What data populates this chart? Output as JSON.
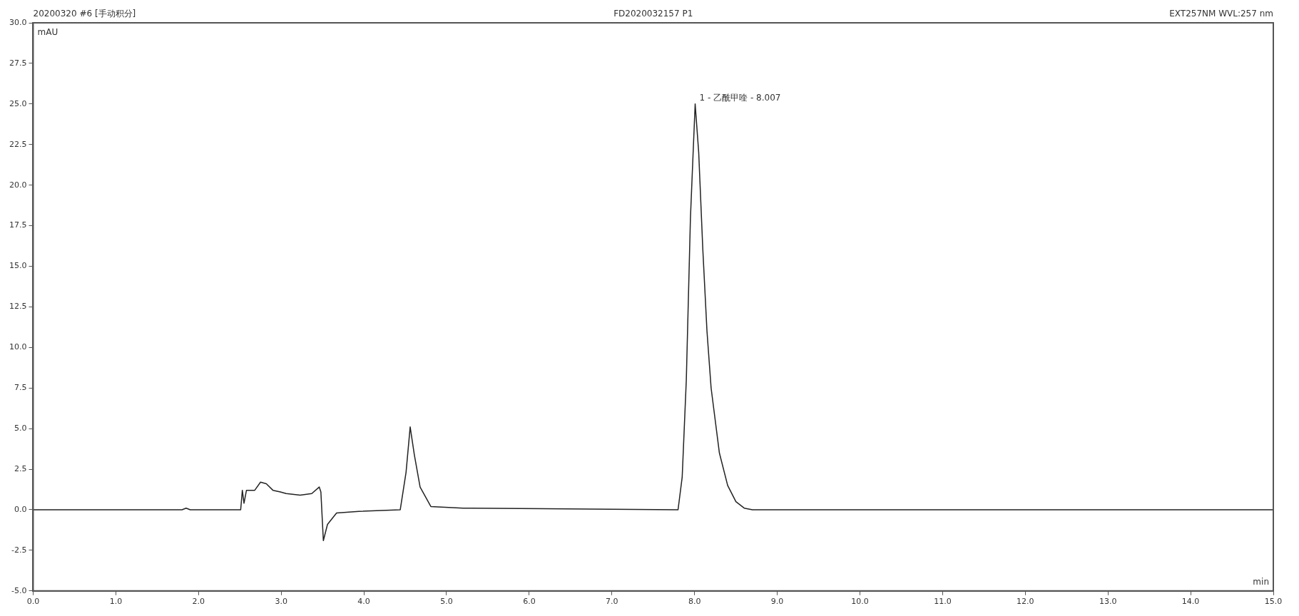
{
  "chart_data": {
    "type": "line",
    "title": "20200320 #6 [手动积分]",
    "subtitle": "FD2020032157 P1",
    "xlabel": "min",
    "ylabel": "mAU",
    "annotations": [
      "EXT257NM WVL:257 nm",
      {
        "text": "1 - 乙酰甲喹 - 8.007",
        "x": 8.007,
        "y": 25.0
      }
    ],
    "x": [
      0,
      1.8,
      1.85,
      1.9,
      2.51,
      2.53,
      2.55,
      2.58,
      2.68,
      2.75,
      2.82,
      2.9,
      2.99,
      3.06,
      3.23,
      3.37,
      3.46,
      3.48,
      3.51,
      3.56,
      3.67,
      3.94,
      4.44,
      4.51,
      4.56,
      4.61,
      4.68,
      4.81,
      5.2,
      5.24,
      5.3,
      7.8,
      7.85,
      7.9,
      7.95,
      8.007,
      8.05,
      8.1,
      8.15,
      8.2,
      8.3,
      8.4,
      8.5,
      8.6,
      8.7,
      15
    ],
    "values": [
      0,
      0,
      0.1,
      0,
      0,
      1.2,
      0.4,
      1.2,
      1.2,
      1.7,
      1.6,
      1.2,
      1.1,
      1.0,
      0.9,
      1.0,
      1.4,
      1.1,
      -1.9,
      -0.9,
      -0.2,
      -0.1,
      0,
      2.3,
      5.1,
      3.4,
      1.4,
      0.2,
      0.1,
      0.1,
      0.1,
      0,
      2,
      8,
      18,
      25.0,
      22,
      16,
      11,
      7.5,
      3.5,
      1.5,
      0.5,
      0.1,
      0,
      0
    ],
    "color": "#222222",
    "marker": "none",
    "line_style": "solid",
    "legend": false,
    "grid": false,
    "xlim": [
      0,
      15
    ],
    "ylim": [
      -5,
      30
    ],
    "xticks": [
      {
        "value": 0,
        "label": "0.0"
      },
      {
        "value": 1,
        "label": "1.0"
      },
      {
        "value": 2,
        "label": "2.0"
      },
      {
        "value": 3,
        "label": "3.0"
      },
      {
        "value": 4,
        "label": "4.0"
      },
      {
        "value": 5,
        "label": "5.0"
      },
      {
        "value": 6,
        "label": "6.0"
      },
      {
        "value": 7,
        "label": "7.0"
      },
      {
        "value": 8,
        "label": "8.0"
      },
      {
        "value": 9,
        "label": "9.0"
      },
      {
        "value": 10,
        "label": "10.0"
      },
      {
        "value": 11,
        "label": "11.0"
      },
      {
        "value": 12,
        "label": "12.0"
      },
      {
        "value": 13,
        "label": "13.0"
      },
      {
        "value": 14,
        "label": "14.0"
      },
      {
        "value": 15,
        "label": "15.0"
      }
    ],
    "yticks": [
      {
        "value": -5,
        "label": "-5.0"
      },
      {
        "value": -2.5,
        "label": "-2.5"
      },
      {
        "value": 0,
        "label": "0.0"
      },
      2.5,
      {
        "value": 5,
        "label": "5.0"
      },
      7.5,
      {
        "value": 10,
        "label": "10.0"
      },
      12.5,
      {
        "value": 15,
        "label": "15.0"
      },
      17.5,
      {
        "value": 20,
        "label": "20.0"
      },
      22.5,
      {
        "value": 25,
        "label": "25.0"
      },
      27.5,
      {
        "value": 30,
        "label": "30.0"
      }
    ]
  }
}
